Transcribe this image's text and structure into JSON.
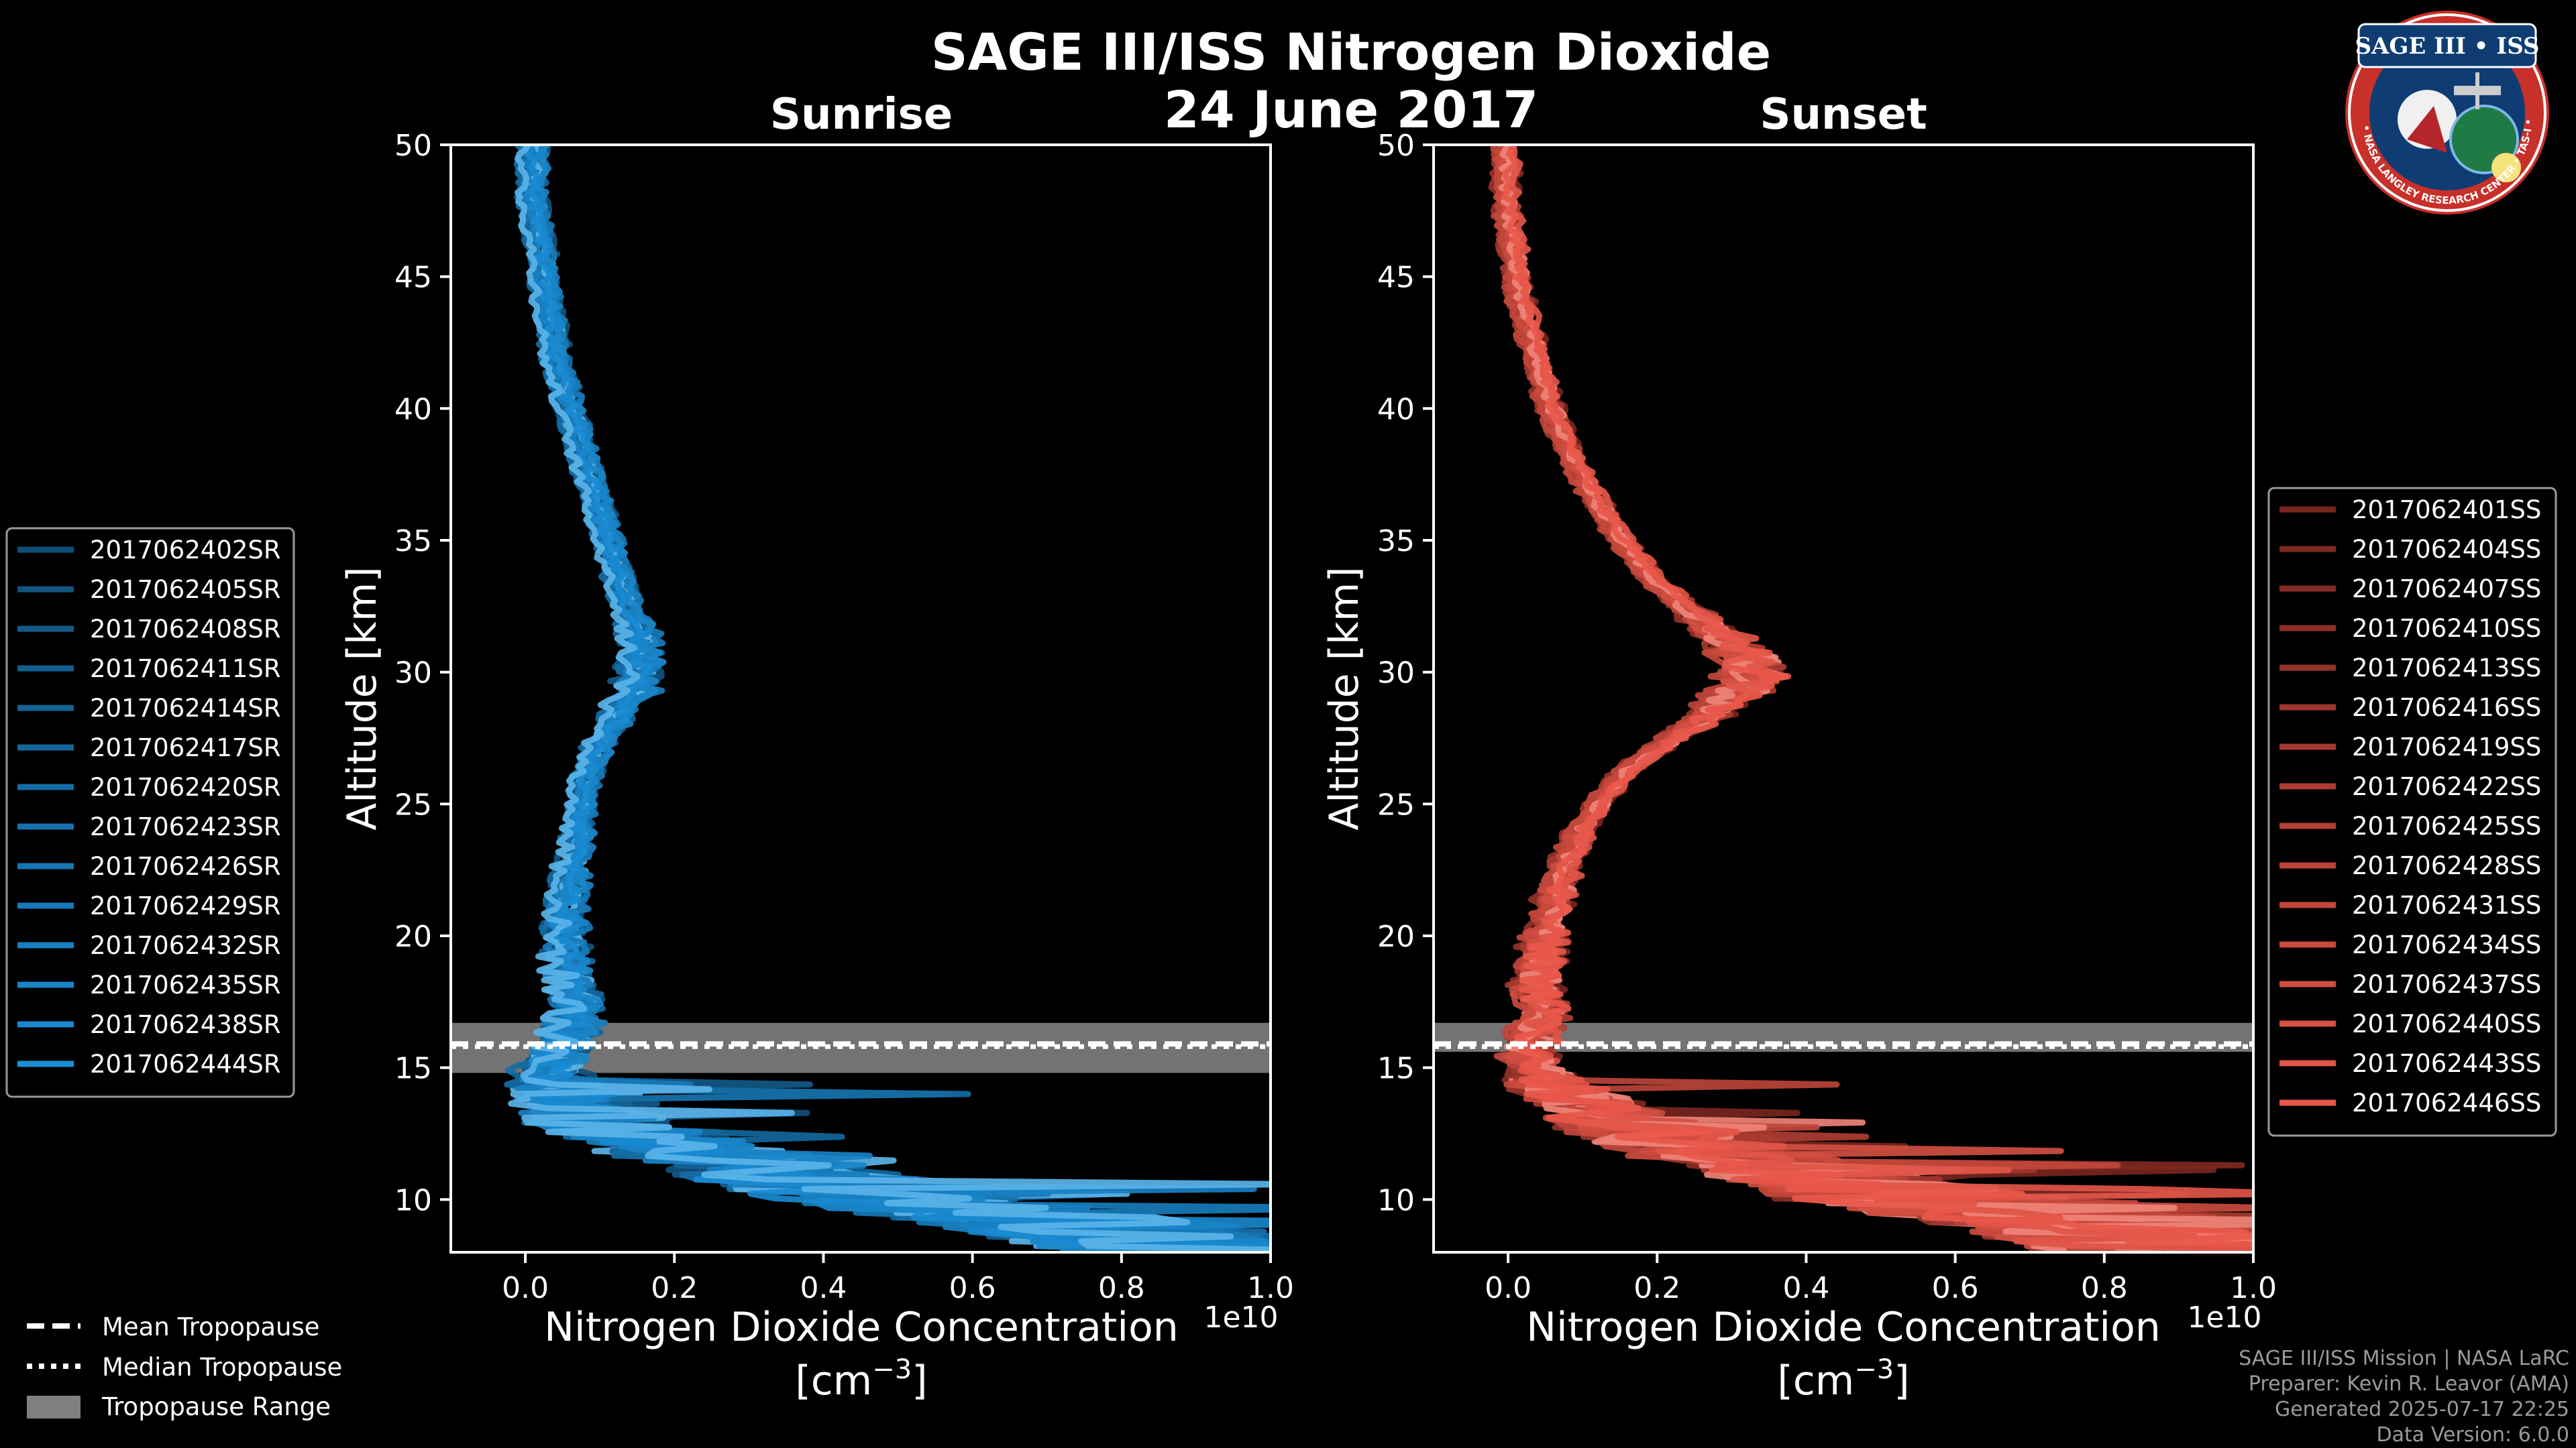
{
  "title": "SAGE III/ISS Nitrogen Dioxide",
  "date_label": "24 June 2017",
  "colors": {
    "background": "#000000",
    "sunrise": "#1a8fd8",
    "sunset": "#e8584a",
    "tropopause_band": "#808080"
  },
  "footer": {
    "line1": "SAGE III/ISS Mission | NASA LaRC",
    "line2": "Preparer: Kevin R. Leavor (AMA)",
    "line3": "Generated 2025-07-17 22:25",
    "line4": "Data Version: 6.0.0"
  },
  "badge": {
    "title": "SAGE III • ISS",
    "ring_text": "BALL • NASA LANGLEY RESEARCH CENTER • TAS-I • ESA",
    "icon": "mission-patch-icon"
  },
  "tropopause_legend": [
    {
      "label": "Mean Tropopause",
      "style": "dashed"
    },
    {
      "label": "Median Tropopause",
      "style": "dotted"
    },
    {
      "label": "Tropopause Range",
      "style": "band"
    }
  ],
  "chart_data": [
    {
      "type": "line",
      "subtitle": "Sunrise",
      "xlabel": "Nitrogen Dioxide Concentration",
      "xlabel_units": "[cm",
      "xlabel_exponent": "−3",
      "xlabel_close": "]",
      "ylabel": "Altitude [km]",
      "x_offset_label": "1e10",
      "xlim": [
        -0.1,
        1.0
      ],
      "ylim": [
        8,
        50
      ],
      "xticks": [
        0.0,
        0.2,
        0.4,
        0.6,
        0.8,
        1.0
      ],
      "xtick_labels": [
        "0.0",
        "0.2",
        "0.4",
        "0.6",
        "0.8",
        "1.0"
      ],
      "yticks": [
        10,
        15,
        20,
        25,
        30,
        35,
        40,
        45,
        50
      ],
      "ytick_labels": [
        "10",
        "15",
        "20",
        "25",
        "30",
        "35",
        "40",
        "45",
        "50"
      ],
      "tropopause": {
        "mean": 15.9,
        "median": 15.8,
        "range": [
          14.8,
          16.7
        ]
      },
      "legend_position": "left",
      "series_names": [
        "2017062402SR",
        "2017062405SR",
        "2017062408SR",
        "2017062411SR",
        "2017062414SR",
        "2017062417SR",
        "2017062420SR",
        "2017062423SR",
        "2017062426SR",
        "2017062429SR",
        "2017062432SR",
        "2017062435SR",
        "2017062438SR",
        "2017062444SR"
      ],
      "base_profile": [
        [
          50,
          0.01
        ],
        [
          48,
          0.01
        ],
        [
          46,
          0.02
        ],
        [
          44,
          0.03
        ],
        [
          42,
          0.04
        ],
        [
          40,
          0.06
        ],
        [
          38,
          0.08
        ],
        [
          36,
          0.1
        ],
        [
          34,
          0.12
        ],
        [
          32,
          0.13
        ],
        [
          30,
          0.12
        ],
        [
          28,
          0.1
        ],
        [
          26,
          0.08
        ],
        [
          24,
          0.07
        ],
        [
          22,
          0.06
        ],
        [
          20,
          0.05
        ],
        [
          18,
          0.06
        ],
        [
          17,
          0.07
        ],
        [
          16,
          0.05
        ],
        [
          15,
          0.03
        ],
        [
          14,
          0.05
        ],
        [
          13,
          0.1
        ],
        [
          12,
          0.2
        ],
        [
          11,
          0.35
        ],
        [
          10,
          0.5
        ],
        [
          9,
          0.75
        ],
        [
          8,
          0.95
        ]
      ],
      "peak_bulge": {
        "altitude": 30,
        "extra": 0.04
      },
      "color_dark": "#0b2c44",
      "color_light": "#1a8fd8",
      "highlight_color": "#8fd0f5"
    },
    {
      "type": "line",
      "subtitle": "Sunset",
      "xlabel": "Nitrogen Dioxide Concentration",
      "xlabel_units": "[cm",
      "xlabel_exponent": "−3",
      "xlabel_close": "]",
      "ylabel": "Altitude [km]",
      "x_offset_label": "1e10",
      "xlim": [
        -0.1,
        1.0
      ],
      "ylim": [
        8,
        50
      ],
      "xticks": [
        0.0,
        0.2,
        0.4,
        0.6,
        0.8,
        1.0
      ],
      "xtick_labels": [
        "0.0",
        "0.2",
        "0.4",
        "0.6",
        "0.8",
        "1.0"
      ],
      "yticks": [
        10,
        15,
        20,
        25,
        30,
        35,
        40,
        45,
        50
      ],
      "ytick_labels": [
        "10",
        "15",
        "20",
        "25",
        "30",
        "35",
        "40",
        "45",
        "50"
      ],
      "tropopause": {
        "mean": 15.9,
        "median": 15.8,
        "range": [
          15.6,
          16.7
        ]
      },
      "legend_position": "right",
      "series_names": [
        "2017062401SS",
        "2017062404SS",
        "2017062407SS",
        "2017062410SS",
        "2017062413SS",
        "2017062416SS",
        "2017062419SS",
        "2017062422SS",
        "2017062425SS",
        "2017062428SS",
        "2017062431SS",
        "2017062434SS",
        "2017062437SS",
        "2017062440SS",
        "2017062443SS",
        "2017062446SS"
      ],
      "base_profile": [
        [
          50,
          0.0
        ],
        [
          48,
          0.0
        ],
        [
          46,
          0.01
        ],
        [
          44,
          0.02
        ],
        [
          42,
          0.04
        ],
        [
          40,
          0.06
        ],
        [
          38,
          0.09
        ],
        [
          36,
          0.13
        ],
        [
          34,
          0.18
        ],
        [
          32,
          0.23
        ],
        [
          30,
          0.26
        ],
        [
          28,
          0.22
        ],
        [
          26,
          0.15
        ],
        [
          24,
          0.1
        ],
        [
          22,
          0.07
        ],
        [
          20,
          0.05
        ],
        [
          18,
          0.04
        ],
        [
          17,
          0.05
        ],
        [
          16,
          0.03
        ],
        [
          15,
          0.03
        ],
        [
          14,
          0.08
        ],
        [
          13,
          0.15
        ],
        [
          12,
          0.25
        ],
        [
          11,
          0.4
        ],
        [
          10,
          0.55
        ],
        [
          9,
          0.8
        ],
        [
          8,
          0.95
        ]
      ],
      "peak_bulge": {
        "altitude": 30,
        "extra": 0.08
      },
      "color_dark": "#3a0906",
      "color_light": "#e8584a",
      "highlight_color": "#f5a79e"
    }
  ]
}
